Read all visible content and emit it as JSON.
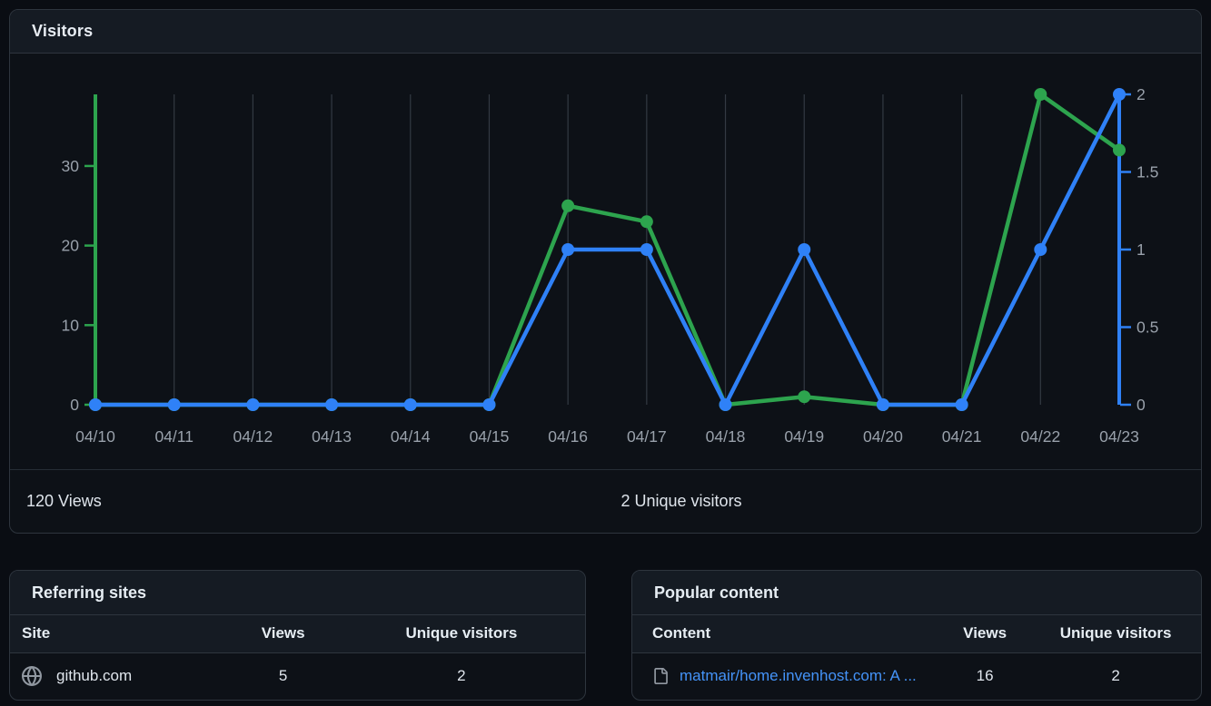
{
  "visitors_card": {
    "title": "Visitors",
    "summary": {
      "views_total": "120 Views",
      "unique_total": "2 Unique visitors"
    }
  },
  "chart_data": {
    "type": "line",
    "title": "Visitors",
    "categories": [
      "04/10",
      "04/11",
      "04/12",
      "04/13",
      "04/14",
      "04/15",
      "04/16",
      "04/17",
      "04/18",
      "04/19",
      "04/20",
      "04/21",
      "04/22",
      "04/23"
    ],
    "series": [
      {
        "name": "Views",
        "axis": "left",
        "color": "#2da44e",
        "values": [
          0,
          0,
          0,
          0,
          0,
          0,
          25,
          23,
          0,
          1,
          0,
          0,
          39,
          32
        ]
      },
      {
        "name": "Unique visitors",
        "axis": "right",
        "color": "#2f81f7",
        "values": [
          0,
          0,
          0,
          0,
          0,
          0,
          1,
          1,
          0,
          1,
          0,
          0,
          1,
          2
        ]
      }
    ],
    "left_axis": {
      "range": [
        0,
        39
      ],
      "ticks": [
        0,
        10,
        20,
        30
      ],
      "color": "#2da44e"
    },
    "right_axis": {
      "range": [
        0,
        2
      ],
      "ticks": [
        0,
        0.5,
        1,
        1.5,
        2
      ],
      "color": "#2f81f7"
    },
    "grid": "vertical-only",
    "grid_color": "#333a43",
    "label_color": "#99a1ab",
    "legend_position": "none"
  },
  "referring_sites": {
    "title": "Referring sites",
    "columns": [
      "Site",
      "Views",
      "Unique visitors"
    ],
    "rows": [
      {
        "icon": "globe-icon",
        "site": "github.com",
        "views": "5",
        "unique_visitors": "2"
      }
    ]
  },
  "popular_content": {
    "title": "Popular content",
    "columns": [
      "Content",
      "Views",
      "Unique visitors"
    ],
    "rows": [
      {
        "icon": "file-icon",
        "content": "matmair/home.invenhost.com: A ...",
        "views": "16",
        "unique_visitors": "2"
      }
    ]
  },
  "colors": {
    "page_bg": "#0a0d13",
    "card_bg": "#0d1117",
    "card_header_bg": "#151b23",
    "border": "#2e353e",
    "link": "#4493f8",
    "text": "#e6edf3",
    "muted": "#99a1ab",
    "views_green": "#2da44e",
    "unique_blue": "#2f81f7"
  }
}
